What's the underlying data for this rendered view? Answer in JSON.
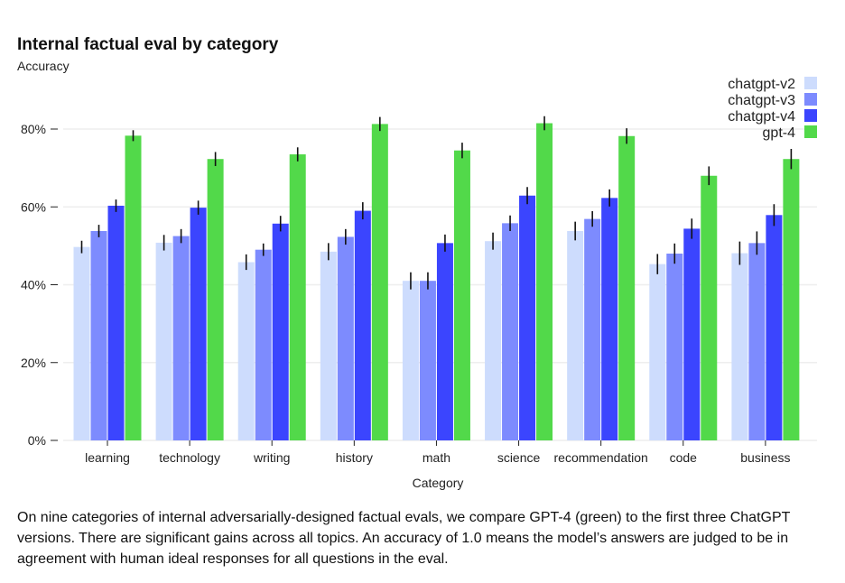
{
  "chart_data": {
    "type": "bar",
    "title": "Internal factual eval by category",
    "ylabel": "Accuracy",
    "xlabel": "Category",
    "ylim": [
      0,
      0.9
    ],
    "yticks": [
      0,
      0.2,
      0.4,
      0.6,
      0.8
    ],
    "ytick_labels": [
      "0%",
      "20%",
      "40%",
      "60%",
      "80%"
    ],
    "grid": true,
    "legend_position": "top-right",
    "categories": [
      "learning",
      "technology",
      "writing",
      "history",
      "math",
      "science",
      "recommendation",
      "code",
      "business"
    ],
    "series": [
      {
        "name": "chatgpt-v2",
        "color": "#cddcfd",
        "values": [
          0.497,
          0.508,
          0.458,
          0.485,
          0.41,
          0.512,
          0.538,
          0.453,
          0.481
        ],
        "errors": [
          0.016,
          0.02,
          0.02,
          0.022,
          0.022,
          0.022,
          0.024,
          0.026,
          0.03
        ]
      },
      {
        "name": "chatgpt-v3",
        "color": "#7d8bfe",
        "values": [
          0.538,
          0.525,
          0.49,
          0.523,
          0.41,
          0.558,
          0.569,
          0.48,
          0.507
        ],
        "errors": [
          0.016,
          0.018,
          0.016,
          0.02,
          0.022,
          0.02,
          0.02,
          0.026,
          0.03
        ]
      },
      {
        "name": "chatgpt-v4",
        "color": "#3b45fe",
        "values": [
          0.603,
          0.598,
          0.557,
          0.59,
          0.507,
          0.629,
          0.623,
          0.544,
          0.579
        ],
        "errors": [
          0.016,
          0.018,
          0.02,
          0.022,
          0.022,
          0.022,
          0.022,
          0.026,
          0.028
        ]
      },
      {
        "name": "gpt-4",
        "color": "#52d94a",
        "values": [
          0.783,
          0.723,
          0.735,
          0.813,
          0.745,
          0.815,
          0.782,
          0.68,
          0.723
        ],
        "errors": [
          0.014,
          0.018,
          0.018,
          0.018,
          0.02,
          0.018,
          0.02,
          0.024,
          0.026
        ]
      }
    ]
  },
  "caption": "On nine categories of internal adversarially-designed factual evals, we compare GPT-4 (green) to the first three ChatGPT versions. There are significant gains across all topics. An accuracy of 1.0 means the model’s answers are judged to be in agreement with human ideal responses for all questions in the eval."
}
